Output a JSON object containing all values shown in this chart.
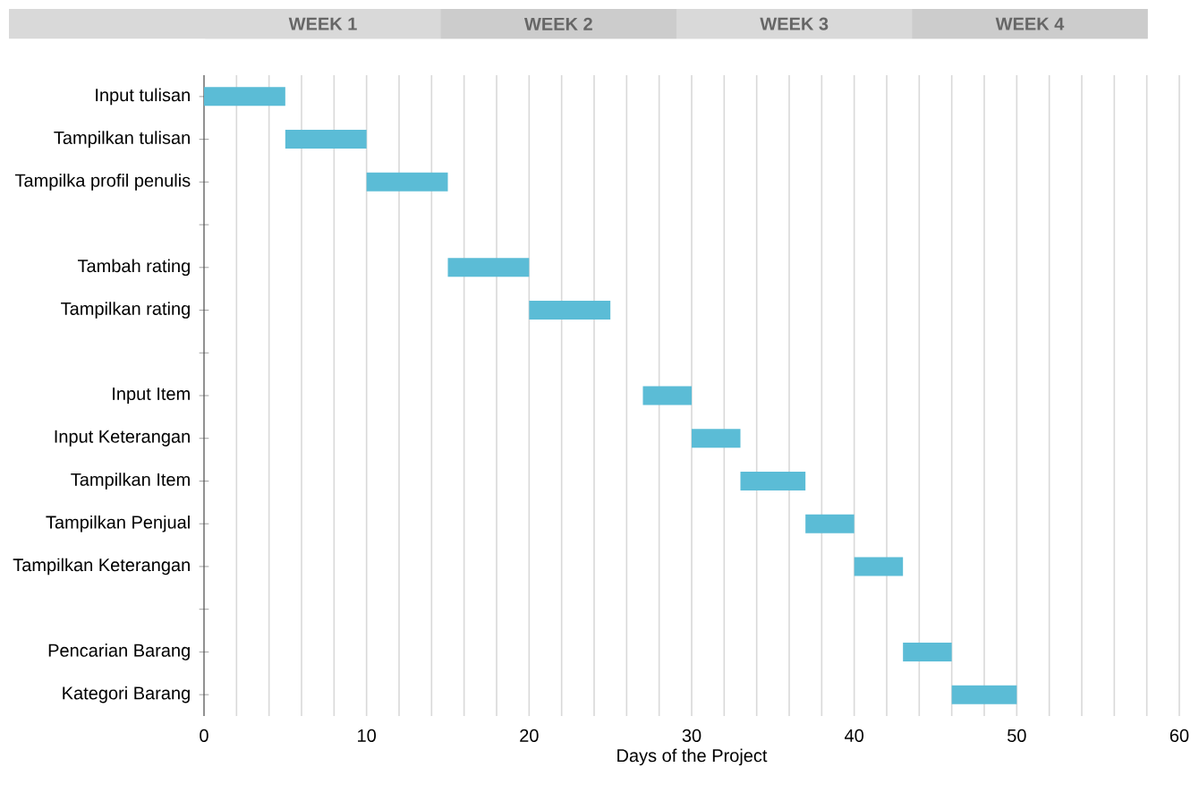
{
  "chart_data": {
    "type": "bar",
    "orientation": "horizontal",
    "xlabel": "Days of the Project",
    "categories": [
      "Input tulisan",
      "Tampilkan tulisan",
      "Tampilka profil penulis",
      null,
      "Tambah rating",
      "Tampilkan rating",
      null,
      "Input Item",
      "Input Keterangan",
      "Tampilkan Item",
      "Tampilkan Penjual",
      "Tampilkan Keterangan",
      null,
      "Pencarian Barang",
      "Kategori Barang"
    ],
    "base": [
      0,
      5,
      10,
      null,
      15,
      20,
      null,
      27,
      30,
      33,
      37,
      40,
      null,
      43,
      46
    ],
    "values": [
      5,
      5,
      5,
      null,
      5,
      5,
      null,
      3,
      3,
      4,
      3,
      3,
      null,
      3,
      4
    ],
    "color": "#5bbcd6",
    "xlim": [
      0,
      60
    ],
    "xticks": [
      0,
      {
        "value": 2,
        "label": null
      },
      {
        "value": 4,
        "label": null
      },
      {
        "value": 6,
        "label": null
      },
      {
        "value": 8,
        "label": null
      },
      10,
      {
        "value": 12,
        "label": null
      },
      {
        "value": 14,
        "label": null
      },
      {
        "value": 16,
        "label": null
      },
      {
        "value": 18,
        "label": null
      },
      20,
      {
        "value": 22,
        "label": null
      },
      {
        "value": 24,
        "label": null
      },
      {
        "value": 26,
        "label": null
      },
      {
        "value": 28,
        "label": null
      },
      30,
      {
        "value": 32,
        "label": null
      },
      {
        "value": 34,
        "label": null
      },
      {
        "value": 36,
        "label": null
      },
      {
        "value": 38,
        "label": null
      },
      40,
      {
        "value": 42,
        "label": null
      },
      {
        "value": 44,
        "label": null
      },
      {
        "value": 46,
        "label": null
      },
      {
        "value": 48,
        "label": null
      },
      50,
      {
        "value": 52,
        "label": null
      },
      {
        "value": 54,
        "label": null
      },
      {
        "value": 56,
        "label": null
      },
      {
        "value": 58,
        "label": null
      },
      60
    ],
    "grid": "x",
    "annotations": [
      "WEEK 1",
      "WEEK 2",
      "WEEK 3",
      "WEEK 4"
    ]
  }
}
